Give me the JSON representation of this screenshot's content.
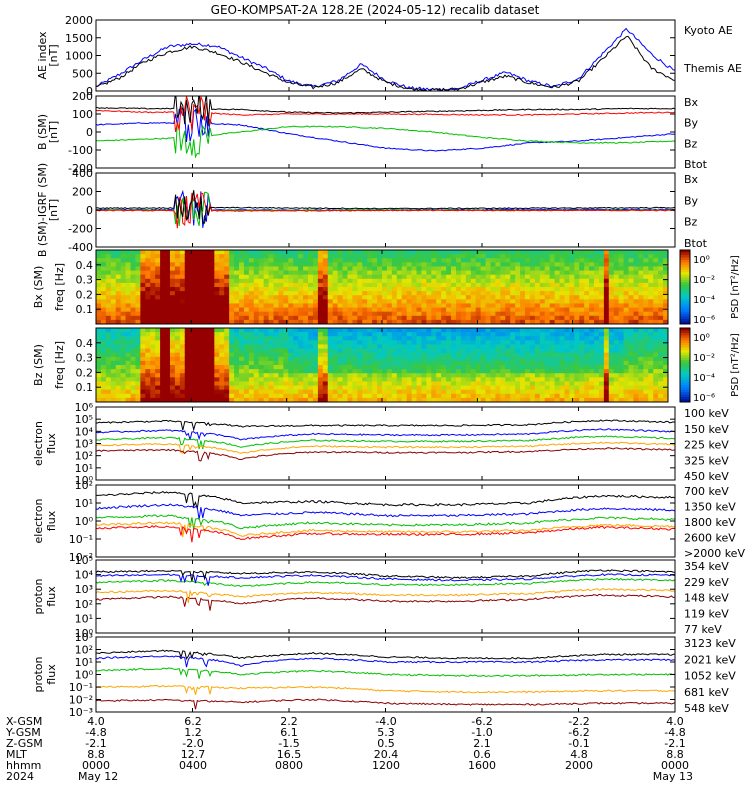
{
  "title": "GEO-KOMPSAT-2A 128.2E (2024-05-12) recalib dataset",
  "colors": {
    "black": "#000000",
    "blue": "#0000ff",
    "green": "#00c000",
    "red": "#ff0000",
    "darkred": "#8b0000",
    "orange": "#ffa500"
  },
  "chart_data": [
    {
      "type": "line",
      "id": "ae",
      "ylabel": "AE index",
      "yunit": "[nT]",
      "ylim": [
        0,
        2000
      ],
      "yticks": [
        "2000",
        "1500",
        "1000",
        "500",
        "0"
      ],
      "series": [
        {
          "name": "Kyoto AE",
          "color": "blue",
          "x": [
            0,
            1,
            2,
            3,
            4,
            5,
            6,
            7,
            8,
            9,
            10,
            11,
            12,
            13,
            14,
            15,
            16,
            17,
            18,
            19,
            20,
            21,
            22,
            23,
            24
          ],
          "y": [
            120,
            480,
            900,
            1250,
            1330,
            1270,
            950,
            650,
            280,
            120,
            280,
            750,
            300,
            80,
            40,
            60,
            300,
            520,
            270,
            120,
            350,
            1050,
            1750,
            1050,
            550
          ]
        },
        {
          "name": "Themis AE",
          "color": "black",
          "x": [
            0,
            1,
            2,
            3,
            4,
            5,
            6,
            7,
            8,
            9,
            10,
            11,
            12,
            13,
            14,
            15,
            16,
            17,
            18,
            19,
            20,
            21,
            22,
            23,
            24
          ],
          "y": [
            100,
            380,
            820,
            1100,
            1250,
            1080,
            820,
            520,
            230,
            100,
            230,
            620,
            250,
            60,
            30,
            50,
            250,
            420,
            220,
            100,
            280,
            900,
            1550,
            650,
            300
          ]
        }
      ]
    },
    {
      "type": "line",
      "id": "bsm",
      "ylabel": "B (SM)",
      "yunit": "[nT]",
      "ylim": [
        -200,
        200
      ],
      "yticks": [
        "200",
        "100",
        "0",
        "-100",
        "-200"
      ],
      "series": [
        {
          "name": "Bx",
          "color": "blue",
          "x": [
            0,
            2,
            4,
            6,
            8,
            10,
            12,
            14,
            16,
            18,
            20,
            22,
            24
          ],
          "y": [
            40,
            50,
            50,
            40,
            -10,
            -50,
            -90,
            -105,
            -90,
            -60,
            -50,
            -30,
            -10
          ]
        },
        {
          "name": "By",
          "color": "green",
          "x": [
            0,
            2,
            4,
            6,
            8,
            10,
            12,
            14,
            16,
            18,
            20,
            22,
            24
          ],
          "y": [
            -50,
            -40,
            -30,
            0,
            30,
            30,
            20,
            0,
            -30,
            -50,
            -60,
            -60,
            -50
          ]
        },
        {
          "name": "Bz",
          "color": "red",
          "x": [
            0,
            2,
            4,
            6,
            8,
            10,
            12,
            14,
            16,
            18,
            20,
            22,
            24
          ],
          "y": [
            120,
            110,
            110,
            95,
            100,
            100,
            100,
            98,
            95,
            95,
            100,
            105,
            110
          ]
        },
        {
          "name": "Btot",
          "color": "black",
          "x": [
            0,
            2,
            4,
            6,
            8,
            10,
            12,
            14,
            16,
            18,
            20,
            22,
            24
          ],
          "y": [
            135,
            130,
            130,
            125,
            110,
            105,
            110,
            115,
            120,
            125,
            125,
            130,
            130
          ]
        }
      ]
    },
    {
      "type": "line",
      "id": "bdiff",
      "ylabel": "B (SM)-IGRF (SM)",
      "yunit": "[nT]",
      "ylim": [
        -400,
        400
      ],
      "yticks": [
        "400",
        "200",
        "0",
        "-200",
        "-400"
      ],
      "series": [
        {
          "name": "Bx",
          "color": "blue",
          "x": [
            0,
            6,
            12,
            18,
            24
          ],
          "y": [
            5,
            0,
            0,
            5,
            5
          ]
        },
        {
          "name": "By",
          "color": "green",
          "x": [
            0,
            6,
            12,
            18,
            24
          ],
          "y": [
            0,
            -5,
            0,
            -5,
            0
          ]
        },
        {
          "name": "Bz",
          "color": "red",
          "x": [
            0,
            6,
            12,
            18,
            24
          ],
          "y": [
            -5,
            -10,
            -5,
            -5,
            -5
          ]
        },
        {
          "name": "Btot",
          "color": "black",
          "x": [
            0,
            6,
            12,
            18,
            24
          ],
          "y": [
            20,
            25,
            15,
            20,
            25
          ]
        }
      ]
    },
    {
      "type": "heatmap",
      "id": "bx_spec",
      "ylabel": "Bx (SM)",
      "ylabel2": "freq [Hz]",
      "ylim": [
        0,
        0.5
      ],
      "yticks": [
        "0.4",
        "0.3",
        "0.2",
        "0.1"
      ],
      "colorbar_label": "PSD [nT²/Hz]",
      "colorbar_ticks": [
        "10⁰",
        "10⁻²",
        "10⁻⁴",
        "10⁻⁶"
      ]
    },
    {
      "type": "heatmap",
      "id": "bz_spec",
      "ylabel": "Bz (SM)",
      "ylabel2": "freq [Hz]",
      "ylim": [
        0,
        0.5
      ],
      "yticks": [
        "0.4",
        "0.3",
        "0.2",
        "0.1"
      ],
      "colorbar_label": "PSD [nT²/Hz]",
      "colorbar_ticks": [
        "10⁰",
        "10⁻²",
        "10⁻⁴",
        "10⁻⁶"
      ]
    },
    {
      "type": "line",
      "id": "e_low",
      "ylabel": "electron",
      "ylabel2": "flux",
      "ylog": true,
      "ylim": [
        1,
        1000000
      ],
      "yticks": [
        "10⁶",
        "10⁵",
        "10⁴",
        "10³",
        "10²",
        "10¹",
        "10⁰"
      ],
      "series": [
        {
          "name": "100 keV",
          "color": "black",
          "x": [
            0,
            3,
            6,
            9,
            12,
            15,
            18,
            21,
            24
          ],
          "y": [
            50000,
            70000,
            25000,
            30000,
            30000,
            30000,
            35000,
            80000,
            55000
          ]
        },
        {
          "name": "150 keV",
          "color": "blue",
          "x": [
            0,
            3,
            6,
            9,
            12,
            15,
            18,
            21,
            24
          ],
          "y": [
            8000,
            12000,
            2000,
            6000,
            5000,
            5000,
            6000,
            15000,
            9000
          ]
        },
        {
          "name": "225 keV",
          "color": "green",
          "x": [
            0,
            3,
            6,
            9,
            12,
            15,
            18,
            21,
            24
          ],
          "y": [
            2000,
            3000,
            500,
            1800,
            1500,
            1500,
            1800,
            4000,
            2500
          ]
        },
        {
          "name": "325 keV",
          "color": "orange",
          "x": [
            0,
            3,
            6,
            9,
            12,
            15,
            18,
            21,
            24
          ],
          "y": [
            700,
            900,
            150,
            600,
            500,
            500,
            600,
            1200,
            800
          ]
        },
        {
          "name": "450 keV",
          "color": "darkred",
          "x": [
            0,
            3,
            6,
            9,
            12,
            15,
            18,
            21,
            24
          ],
          "y": [
            250,
            300,
            50,
            200,
            180,
            180,
            220,
            400,
            300
          ]
        }
      ]
    },
    {
      "type": "line",
      "id": "e_high",
      "ylabel": "electron",
      "ylabel2": "flux",
      "ylog": true,
      "ylim": [
        0.01,
        100
      ],
      "yticks": [
        "10²",
        "10¹",
        "10⁰",
        "10⁻¹",
        "10⁻²"
      ],
      "series": [
        {
          "name": "700 keV",
          "color": "black",
          "x": [
            0,
            3,
            6,
            9,
            12,
            15,
            18,
            21,
            24
          ],
          "y": [
            25,
            40,
            10,
            12,
            8,
            8,
            10,
            25,
            20
          ]
        },
        {
          "name": "1350 keV",
          "color": "blue",
          "x": [
            0,
            3,
            6,
            9,
            12,
            15,
            18,
            21,
            24
          ],
          "y": [
            5,
            8,
            2,
            3,
            2,
            2,
            2.5,
            5,
            4
          ]
        },
        {
          "name": "1800 keV",
          "color": "green",
          "x": [
            0,
            3,
            6,
            9,
            12,
            15,
            18,
            21,
            24
          ],
          "y": [
            1.5,
            2,
            0.4,
            0.8,
            0.6,
            0.6,
            0.8,
            1.5,
            1.2
          ]
        },
        {
          "name": "2600 keV",
          "color": "orange",
          "x": [
            0,
            3,
            6,
            9,
            12,
            15,
            18,
            21,
            24
          ],
          "y": [
            0.6,
            0.8,
            0.15,
            0.3,
            0.25,
            0.25,
            0.3,
            0.6,
            0.5
          ]
        },
        {
          "name": ">2000 keV",
          "color": "red",
          "x": [
            0,
            3,
            6,
            9,
            12,
            15,
            18,
            21,
            24
          ],
          "y": [
            0.4,
            0.5,
            0.1,
            0.2,
            0.18,
            0.18,
            0.22,
            0.45,
            0.35
          ]
        }
      ]
    },
    {
      "type": "line",
      "id": "p_low",
      "ylabel": "proton",
      "ylabel2": "flux",
      "ylog": true,
      "ylim": [
        1,
        100000
      ],
      "yticks": [
        "10⁵",
        "10⁴",
        "10³",
        "10²",
        "10¹",
        "10⁰"
      ],
      "series": [
        {
          "name": "354 keV",
          "color": "darkred",
          "x": [
            0,
            3,
            6,
            9,
            12,
            15,
            18,
            21,
            24
          ],
          "y": [
            200,
            300,
            100,
            250,
            150,
            150,
            200,
            400,
            300
          ]
        },
        {
          "name": "229 keV",
          "color": "orange",
          "x": [
            0,
            3,
            6,
            9,
            12,
            15,
            18,
            21,
            24
          ],
          "y": [
            600,
            800,
            300,
            600,
            400,
            400,
            500,
            1000,
            800
          ]
        },
        {
          "name": "148 keV",
          "color": "green",
          "x": [
            0,
            3,
            6,
            9,
            12,
            15,
            18,
            21,
            24
          ],
          "y": [
            3000,
            4000,
            1500,
            3000,
            2000,
            2000,
            2500,
            5000,
            4000
          ]
        },
        {
          "name": "119 keV",
          "color": "blue",
          "x": [
            0,
            3,
            6,
            9,
            12,
            15,
            18,
            21,
            24
          ],
          "y": [
            8000,
            10000,
            6000,
            9000,
            5000,
            4000,
            5000,
            10000,
            9000
          ]
        },
        {
          "name": "77 keV",
          "color": "black",
          "x": [
            0,
            3,
            6,
            9,
            12,
            15,
            18,
            21,
            24
          ],
          "y": [
            15000,
            18000,
            12000,
            15000,
            8000,
            6000,
            8000,
            20000,
            15000
          ]
        }
      ]
    },
    {
      "type": "line",
      "id": "p_high",
      "ylabel": "proton",
      "ylabel2": "flux",
      "ylog": true,
      "ylim": [
        0.001,
        1000
      ],
      "yticks": [
        "10³",
        "10²",
        "10¹",
        "10⁰",
        "10⁻¹",
        "10⁻²",
        "10⁻³"
      ],
      "series": [
        {
          "name": "3123 keV",
          "color": "darkred",
          "x": [
            0,
            3,
            6,
            9,
            12,
            15,
            18,
            21,
            24
          ],
          "y": [
            0.008,
            0.009,
            0.006,
            0.01,
            0.005,
            0.004,
            0.004,
            0.005,
            0.005
          ]
        },
        {
          "name": "2021 keV",
          "color": "orange",
          "x": [
            0,
            3,
            6,
            9,
            12,
            15,
            18,
            21,
            24
          ],
          "y": [
            0.1,
            0.12,
            0.08,
            0.1,
            0.05,
            0.04,
            0.04,
            0.05,
            0.05
          ]
        },
        {
          "name": "1052 keV",
          "color": "green",
          "x": [
            0,
            3,
            6,
            9,
            12,
            15,
            18,
            21,
            24
          ],
          "y": [
            2,
            3,
            1,
            2,
            1,
            0.8,
            0.8,
            1,
            1
          ]
        },
        {
          "name": "681 keV",
          "color": "blue",
          "x": [
            0,
            3,
            6,
            9,
            12,
            15,
            18,
            21,
            24
          ],
          "y": [
            20,
            30,
            5,
            20,
            10,
            10,
            10,
            15,
            15
          ]
        },
        {
          "name": "548 keV",
          "color": "black",
          "x": [
            0,
            3,
            6,
            9,
            12,
            15,
            18,
            21,
            24
          ],
          "y": [
            50,
            80,
            20,
            50,
            25,
            20,
            20,
            40,
            40
          ]
        }
      ]
    }
  ],
  "xaxis": {
    "rows": [
      {
        "label": "X-GSM",
        "values": [
          "4.0",
          "6.2",
          "2.2",
          "-4.0",
          "-6.2",
          "-2.2",
          "4.0"
        ]
      },
      {
        "label": "Y-GSM",
        "values": [
          "-4.8",
          "1.2",
          "6.1",
          "5.3",
          "-1.0",
          "-6.2",
          "-4.8"
        ]
      },
      {
        "label": "Z-GSM",
        "values": [
          "-2.1",
          "-2.0",
          "-1.5",
          "0.5",
          "2.1",
          "-0.1",
          "-2.1"
        ]
      },
      {
        "label": "MLT",
        "values": [
          "8.8",
          "12.7",
          "16.5",
          "20.4",
          "0.6",
          "4.8",
          "8.8"
        ]
      },
      {
        "label": "hhmm",
        "values": [
          "0000",
          "0400",
          "0800",
          "1200",
          "1600",
          "2000",
          "0000"
        ]
      },
      {
        "label": "2024",
        "values": [
          "May 12",
          "",
          "",
          "",
          "",
          "",
          "May 13"
        ]
      }
    ]
  }
}
